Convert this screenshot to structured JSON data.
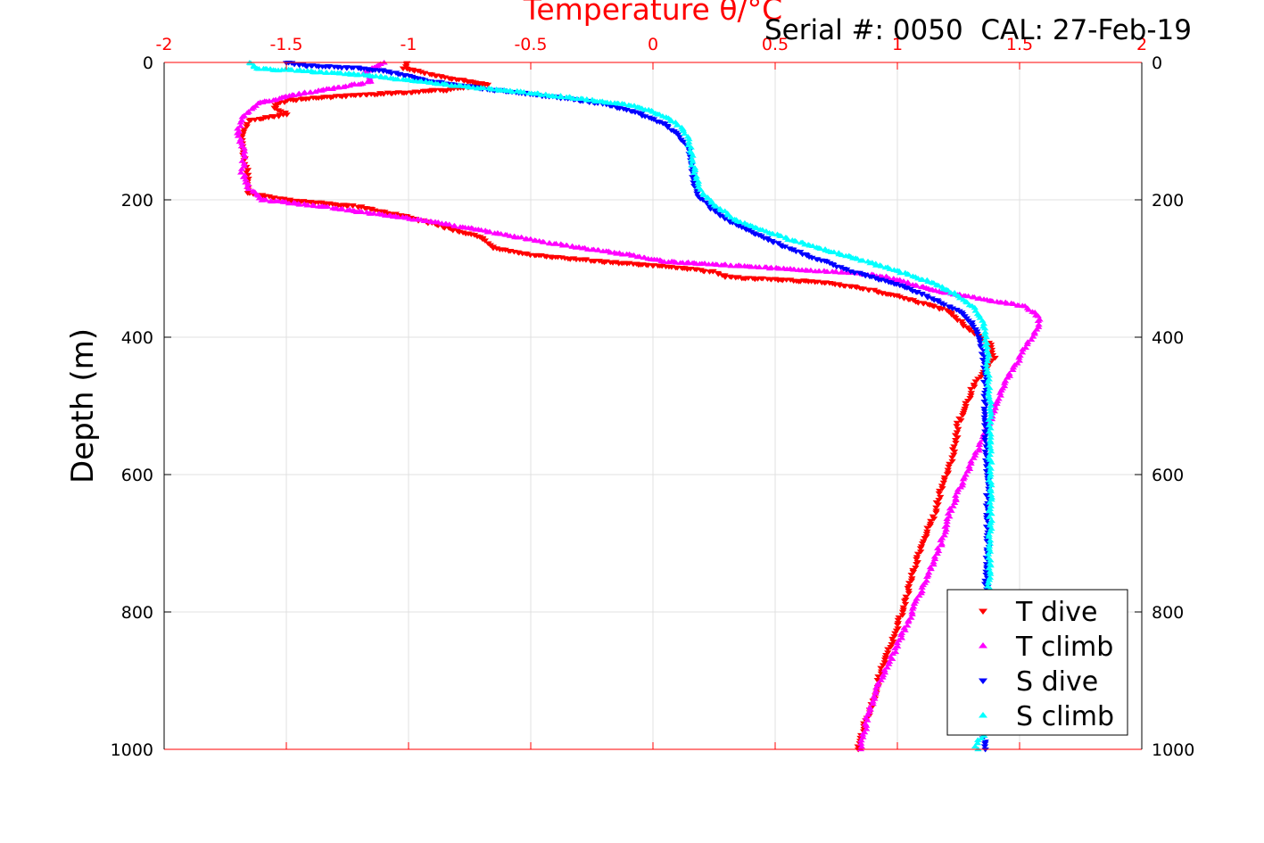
{
  "chart_data": {
    "type": "scatter",
    "title": "Temperature θ/°C",
    "annotation": "Serial #: 0050  CAL: 27-Feb-19",
    "xlabel": "Temperature θ/°C",
    "ylabel": "Depth (m)",
    "xlim": [
      -2,
      2
    ],
    "ylim": [
      0,
      1000
    ],
    "y_reversed": true,
    "grid": true,
    "x_ticks": [
      "-2",
      "-1.5",
      "-1",
      "-0.5",
      "0",
      "0.5",
      "1",
      "1.5",
      "2"
    ],
    "y_ticks": [
      "0",
      "200",
      "400",
      "600",
      "800",
      "1000"
    ],
    "legend_position": "bottom-right",
    "series": [
      {
        "name": "T dive",
        "marker": "triangle-down",
        "color": "#ff0000",
        "points": [
          [
            -1.0,
            0
          ],
          [
            -1.02,
            8
          ],
          [
            -0.85,
            22
          ],
          [
            -0.68,
            32
          ],
          [
            -0.85,
            40
          ],
          [
            -1.25,
            48
          ],
          [
            -1.5,
            55
          ],
          [
            -1.55,
            65
          ],
          [
            -1.5,
            75
          ],
          [
            -1.65,
            85
          ],
          [
            -1.68,
            100
          ],
          [
            -1.68,
            130
          ],
          [
            -1.66,
            160
          ],
          [
            -1.66,
            190
          ],
          [
            -1.5,
            200
          ],
          [
            -1.2,
            210
          ],
          [
            -1.0,
            225
          ],
          [
            -0.85,
            240
          ],
          [
            -0.7,
            255
          ],
          [
            -0.65,
            270
          ],
          [
            -0.5,
            280
          ],
          [
            -0.2,
            290
          ],
          [
            0.1,
            298
          ],
          [
            0.25,
            305
          ],
          [
            0.3,
            312
          ],
          [
            0.5,
            316
          ],
          [
            0.7,
            320
          ],
          [
            0.8,
            325
          ],
          [
            0.9,
            332
          ],
          [
            1.0,
            340
          ],
          [
            1.1,
            350
          ],
          [
            1.2,
            360
          ],
          [
            1.25,
            375
          ],
          [
            1.3,
            390
          ],
          [
            1.38,
            410
          ],
          [
            1.4,
            430
          ],
          [
            1.35,
            450
          ],
          [
            1.3,
            480
          ],
          [
            1.28,
            500
          ],
          [
            1.25,
            525
          ],
          [
            1.24,
            550
          ],
          [
            1.22,
            580
          ],
          [
            1.18,
            620
          ],
          [
            1.15,
            660
          ],
          [
            1.1,
            700
          ],
          [
            1.06,
            750
          ],
          [
            1.02,
            800
          ],
          [
            0.97,
            850
          ],
          [
            0.93,
            890
          ],
          [
            0.9,
            930
          ],
          [
            0.86,
            970
          ],
          [
            0.84,
            1000
          ]
        ]
      },
      {
        "name": "T climb",
        "marker": "triangle-up",
        "color": "#ff00ff",
        "points": [
          [
            -1.1,
            0
          ],
          [
            -1.18,
            15
          ],
          [
            -1.15,
            28
          ],
          [
            -1.35,
            40
          ],
          [
            -1.5,
            50
          ],
          [
            -1.62,
            60
          ],
          [
            -1.68,
            80
          ],
          [
            -1.7,
            100
          ],
          [
            -1.67,
            130
          ],
          [
            -1.68,
            160
          ],
          [
            -1.65,
            185
          ],
          [
            -1.6,
            200
          ],
          [
            -1.35,
            210
          ],
          [
            -1.15,
            220
          ],
          [
            -0.9,
            232
          ],
          [
            -0.7,
            245
          ],
          [
            -0.5,
            258
          ],
          [
            -0.3,
            270
          ],
          [
            -0.1,
            280
          ],
          [
            0.05,
            290
          ],
          [
            0.3,
            295
          ],
          [
            0.5,
            300
          ],
          [
            0.8,
            306
          ],
          [
            0.95,
            312
          ],
          [
            1.05,
            322
          ],
          [
            1.15,
            332
          ],
          [
            1.35,
            345
          ],
          [
            1.52,
            355
          ],
          [
            1.58,
            370
          ],
          [
            1.58,
            385
          ],
          [
            1.55,
            400
          ],
          [
            1.5,
            430
          ],
          [
            1.45,
            460
          ],
          [
            1.4,
            500
          ],
          [
            1.35,
            550
          ],
          [
            1.28,
            600
          ],
          [
            1.22,
            650
          ],
          [
            1.18,
            700
          ],
          [
            1.12,
            750
          ],
          [
            1.06,
            800
          ],
          [
            1.0,
            850
          ],
          [
            0.93,
            900
          ],
          [
            0.88,
            950
          ],
          [
            0.85,
            1000
          ]
        ]
      },
      {
        "name": "S dive",
        "marker": "triangle-down",
        "color": "#0000ff",
        "points": [
          [
            -1.5,
            0
          ],
          [
            -1.4,
            5
          ],
          [
            -1.2,
            8
          ],
          [
            -1.1,
            12
          ],
          [
            -1.0,
            20
          ],
          [
            -0.9,
            28
          ],
          [
            -0.6,
            42
          ],
          [
            -0.4,
            50
          ],
          [
            -0.2,
            60
          ],
          [
            -0.05,
            75
          ],
          [
            0.05,
            90
          ],
          [
            0.1,
            105
          ],
          [
            0.15,
            125
          ],
          [
            0.16,
            150
          ],
          [
            0.17,
            175
          ],
          [
            0.19,
            195
          ],
          [
            0.25,
            215
          ],
          [
            0.32,
            232
          ],
          [
            0.42,
            250
          ],
          [
            0.52,
            265
          ],
          [
            0.62,
            280
          ],
          [
            0.72,
            292
          ],
          [
            0.82,
            305
          ],
          [
            0.95,
            318
          ],
          [
            1.05,
            330
          ],
          [
            1.15,
            345
          ],
          [
            1.25,
            362
          ],
          [
            1.3,
            378
          ],
          [
            1.33,
            395
          ],
          [
            1.35,
            420
          ],
          [
            1.36,
            460
          ],
          [
            1.36,
            520
          ],
          [
            1.37,
            600
          ],
          [
            1.37,
            700
          ],
          [
            1.36,
            800
          ],
          [
            1.35,
            900
          ],
          [
            1.35,
            980
          ],
          [
            1.36,
            1000
          ]
        ]
      },
      {
        "name": "S climb",
        "marker": "triangle-up",
        "color": "#00ffff",
        "points": [
          [
            -1.65,
            0
          ],
          [
            -1.62,
            10
          ],
          [
            -1.45,
            12
          ],
          [
            -1.2,
            18
          ],
          [
            -0.9,
            30
          ],
          [
            -0.7,
            38
          ],
          [
            -0.5,
            45
          ],
          [
            -0.3,
            53
          ],
          [
            -0.1,
            62
          ],
          [
            0.0,
            72
          ],
          [
            0.08,
            85
          ],
          [
            0.13,
            100
          ],
          [
            0.15,
            120
          ],
          [
            0.16,
            145
          ],
          [
            0.18,
            170
          ],
          [
            0.2,
            190
          ],
          [
            0.26,
            210
          ],
          [
            0.33,
            228
          ],
          [
            0.45,
            245
          ],
          [
            0.58,
            260
          ],
          [
            0.7,
            272
          ],
          [
            0.82,
            285
          ],
          [
            0.95,
            298
          ],
          [
            1.05,
            310
          ],
          [
            1.15,
            322
          ],
          [
            1.25,
            340
          ],
          [
            1.32,
            358
          ],
          [
            1.35,
            380
          ],
          [
            1.36,
            400
          ],
          [
            1.37,
            440
          ],
          [
            1.38,
            500
          ],
          [
            1.38,
            600
          ],
          [
            1.38,
            700
          ],
          [
            1.37,
            800
          ],
          [
            1.36,
            900
          ],
          [
            1.35,
            980
          ],
          [
            1.32,
            995
          ],
          [
            1.33,
            1000
          ]
        ]
      }
    ]
  }
}
